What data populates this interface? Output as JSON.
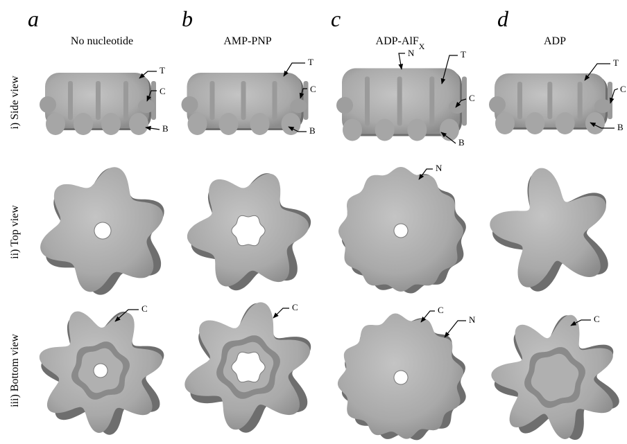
{
  "panels": [
    {
      "letter": "a",
      "title": "No nucleotide",
      "side_labels": [
        "T",
        "C",
        "B"
      ],
      "top_labels": [],
      "bottom_labels": [
        "C"
      ]
    },
    {
      "letter": "b",
      "title": "AMP-PNP",
      "side_labels": [
        "T",
        "C",
        "B"
      ],
      "top_labels": [],
      "bottom_labels": [
        "C"
      ]
    },
    {
      "letter": "c",
      "title": "ADP-AlF",
      "title_subscript": "X",
      "side_labels": [
        "N",
        "T",
        "C",
        "B"
      ],
      "top_labels": [
        "N"
      ],
      "bottom_labels": [
        "C",
        "N"
      ]
    },
    {
      "letter": "d",
      "title": "ADP",
      "side_labels": [
        "T",
        "C",
        "B"
      ],
      "top_labels": [],
      "bottom_labels": [
        "C"
      ]
    }
  ],
  "rows": [
    "i) Side view",
    "ii) Top view",
    "iii) Bottom view"
  ]
}
